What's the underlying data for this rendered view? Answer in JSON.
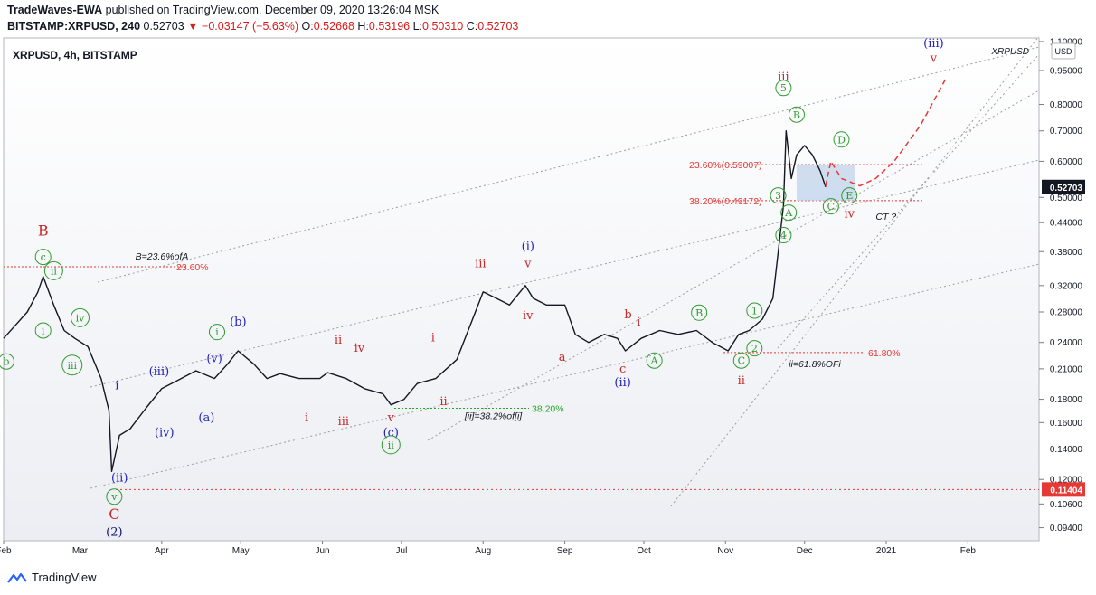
{
  "header": {
    "author": "TradeWaves-EWA",
    "published_text": " published on TradingView.com, December 09, 2020 13:26:04 MSK",
    "symbol": "BITSTAMP:XRPUSD, 240",
    "last": "0.52703",
    "change": "−0.03147 (−5.63%)",
    "o_label": "O:",
    "o": "0.52668",
    "h_label": "H:",
    "h": "0.53196",
    "l_label": "L:",
    "l": "0.50310",
    "c_label": "C:",
    "c": "0.52703"
  },
  "legend_title": "XRPUSD, 4h, BITSTAMP",
  "watermark": "XRPUSD",
  "footer": {
    "brand": "TradingView"
  },
  "colors": {
    "wave_red": "#c62828",
    "wave_green": "#2e9b2e",
    "wave_blue": "#2222bb",
    "navy": "#10106a",
    "fib_red": "#e53935",
    "fib_green": "#27a527",
    "last_price_bg": "#131722",
    "low_bg": "#e53935"
  },
  "chart_data": {
    "type": "line",
    "scale": "log",
    "x_axis": {
      "range": [
        "2020-02-01",
        "2021-02-28"
      ],
      "tick_labels": [
        "Feb",
        "Mar",
        "Apr",
        "May",
        "Jun",
        "Jul",
        "Aug",
        "Sep",
        "Oct",
        "Nov",
        "Dec",
        "2021",
        "Feb"
      ]
    },
    "y_axis": {
      "range": [
        0.088,
        1.12
      ],
      "tick_labels": [
        "1.10000",
        "0.95000",
        "0.80000",
        "0.70000",
        "0.60000",
        "0.50000",
        "0.44000",
        "0.38000",
        "0.32000",
        "0.28000",
        "0.24000",
        "0.21000",
        "0.18000",
        "0.16000",
        "0.14000",
        "0.12000",
        "0.10600",
        "0.09400"
      ],
      "currency": "USD"
    },
    "price_tags": [
      {
        "label": "0.52703",
        "value": 0.52703,
        "kind": "last"
      },
      {
        "label": "0.11404",
        "value": 0.11404,
        "kind": "low"
      }
    ],
    "series": [
      {
        "x": [
          "2020-02-01",
          "2020-02-05",
          "2020-02-10",
          "2020-02-14",
          "2020-02-16",
          "2020-02-20",
          "2020-02-24",
          "2020-02-28",
          "2020-03-04",
          "2020-03-09",
          "2020-03-12",
          "2020-03-13",
          "2020-03-16",
          "2020-03-20",
          "2020-03-26",
          "2020-04-01",
          "2020-04-07",
          "2020-04-14",
          "2020-04-21",
          "2020-04-26",
          "2020-04-30",
          "2020-05-06",
          "2020-05-11",
          "2020-05-16",
          "2020-05-23",
          "2020-05-31",
          "2020-06-03",
          "2020-06-10",
          "2020-06-17",
          "2020-06-24",
          "2020-06-27",
          "2020-07-02",
          "2020-07-07",
          "2020-07-14",
          "2020-07-22",
          "2020-07-28",
          "2020-08-01",
          "2020-08-06",
          "2020-08-11",
          "2020-08-17",
          "2020-08-20",
          "2020-08-25",
          "2020-09-01",
          "2020-09-05",
          "2020-09-10",
          "2020-09-16",
          "2020-09-21",
          "2020-09-24",
          "2020-09-30",
          "2020-10-07",
          "2020-10-14",
          "2020-10-21",
          "2020-10-27",
          "2020-11-02",
          "2020-11-06",
          "2020-11-10",
          "2020-11-15",
          "2020-11-19",
          "2020-11-21",
          "2020-11-23",
          "2020-11-24",
          "2020-11-26",
          "2020-11-28",
          "2020-12-01",
          "2020-12-04",
          "2020-12-07",
          "2020-12-09"
        ],
        "values": [
          0.245,
          0.26,
          0.28,
          0.31,
          0.335,
          0.29,
          0.255,
          0.245,
          0.235,
          0.2,
          0.17,
          0.125,
          0.15,
          0.155,
          0.172,
          0.19,
          0.198,
          0.208,
          0.2,
          0.215,
          0.23,
          0.215,
          0.2,
          0.205,
          0.2,
          0.2,
          0.206,
          0.2,
          0.19,
          0.185,
          0.175,
          0.18,
          0.195,
          0.2,
          0.22,
          0.27,
          0.31,
          0.3,
          0.29,
          0.32,
          0.3,
          0.29,
          0.29,
          0.25,
          0.24,
          0.25,
          0.245,
          0.23,
          0.245,
          0.255,
          0.25,
          0.255,
          0.24,
          0.23,
          0.25,
          0.255,
          0.27,
          0.3,
          0.38,
          0.48,
          0.7,
          0.55,
          0.62,
          0.65,
          0.62,
          0.57,
          0.52703
        ]
      }
    ],
    "forecast_path": {
      "x": [
        "2020-12-09",
        "2020-12-11",
        "2020-12-15",
        "2020-12-22",
        "2020-12-28",
        "2021-01-04",
        "2021-01-14",
        "2021-01-24"
      ],
      "values": [
        0.53,
        0.6,
        0.55,
        0.53,
        0.55,
        0.6,
        0.72,
        0.92
      ],
      "style": "dashed"
    },
    "fib_levels": [
      {
        "label": "23.60%(0.59007)",
        "value": 0.59007
      },
      {
        "label": "38.20%(0.49172)",
        "value": 0.49172
      },
      {
        "label": "23.60%",
        "value": 0.352
      },
      {
        "label": "61.80%",
        "value": 0.228
      },
      {
        "label": "38.20%",
        "value": 0.172
      }
    ],
    "annotations": [
      {
        "text": "B=23.6%ofA",
        "x": "2020-03-22",
        "y": 0.365
      },
      {
        "text": "[ii]=38.2%of[i]",
        "x": "2020-07-25",
        "y": 0.163
      },
      {
        "text": "ii=61.8%OFi",
        "x": "2020-11-25",
        "y": 0.212
      },
      {
        "text": "CT ?",
        "x": "2020-12-28",
        "y": 0.447
      }
    ],
    "wave_labels": [
      {
        "text": "B",
        "x": "2020-02-16",
        "y": 0.42,
        "color": "wave_red",
        "style": "plain"
      },
      {
        "text": "c",
        "x": "2020-02-16",
        "y": 0.37,
        "color": "wave_green",
        "style": "circle"
      },
      {
        "text": "ii",
        "x": "2020-02-20",
        "y": 0.345,
        "color": "wave_green",
        "style": "circle"
      },
      {
        "text": "i",
        "x": "2020-02-16",
        "y": 0.255,
        "color": "wave_green",
        "style": "circle"
      },
      {
        "text": "b",
        "x": "2020-02-02",
        "y": 0.218,
        "color": "wave_green",
        "style": "circle"
      },
      {
        "text": "iv",
        "x": "2020-03-01",
        "y": 0.272,
        "color": "wave_green",
        "style": "circle"
      },
      {
        "text": "iii",
        "x": "2020-02-27",
        "y": 0.214,
        "color": "wave_green",
        "style": "circle"
      },
      {
        "text": "i",
        "x": "2020-03-15",
        "y": 0.193,
        "color": "wave_blue",
        "style": "plain"
      },
      {
        "text": "(ii)",
        "x": "2020-03-16",
        "y": 0.121,
        "color": "wave_blue",
        "style": "plain"
      },
      {
        "text": "v",
        "x": "2020-03-14",
        "y": 0.11,
        "color": "wave_green",
        "style": "circle"
      },
      {
        "text": "C",
        "x": "2020-03-14",
        "y": 0.1,
        "color": "wave_red",
        "style": "plain"
      },
      {
        "text": "(2)",
        "x": "2020-03-14",
        "y": 0.092,
        "color": "navy",
        "style": "plain"
      },
      {
        "text": "(iii)",
        "x": "2020-03-31",
        "y": 0.207,
        "color": "wave_blue",
        "style": "plain"
      },
      {
        "text": "(iv)",
        "x": "2020-04-02",
        "y": 0.152,
        "color": "wave_blue",
        "style": "plain"
      },
      {
        "text": "(v)",
        "x": "2020-04-21",
        "y": 0.221,
        "color": "wave_blue",
        "style": "plain"
      },
      {
        "text": "i",
        "x": "2020-04-22",
        "y": 0.253,
        "color": "wave_green",
        "style": "circle"
      },
      {
        "text": "(a)",
        "x": "2020-04-18",
        "y": 0.164,
        "color": "wave_blue",
        "style": "plain"
      },
      {
        "text": "(b)",
        "x": "2020-04-30",
        "y": 0.266,
        "color": "wave_blue",
        "style": "plain"
      },
      {
        "text": "ii",
        "x": "2020-06-07",
        "y": 0.243,
        "color": "wave_red",
        "style": "plain"
      },
      {
        "text": "iv",
        "x": "2020-06-15",
        "y": 0.233,
        "color": "wave_red",
        "style": "plain"
      },
      {
        "text": "i",
        "x": "2020-05-26",
        "y": 0.164,
        "color": "wave_red",
        "style": "plain"
      },
      {
        "text": "iii",
        "x": "2020-06-09",
        "y": 0.161,
        "color": "wave_red",
        "style": "plain"
      },
      {
        "text": "v",
        "x": "2020-06-27",
        "y": 0.164,
        "color": "wave_red",
        "style": "plain"
      },
      {
        "text": "(c)",
        "x": "2020-06-27",
        "y": 0.152,
        "color": "wave_blue",
        "style": "plain"
      },
      {
        "text": "ii",
        "x": "2020-06-27",
        "y": 0.143,
        "color": "wave_green",
        "style": "circle"
      },
      {
        "text": "i",
        "x": "2020-07-13",
        "y": 0.246,
        "color": "wave_red",
        "style": "plain"
      },
      {
        "text": "ii",
        "x": "2020-07-17",
        "y": 0.178,
        "color": "wave_red",
        "style": "plain"
      },
      {
        "text": "iii",
        "x": "2020-07-31",
        "y": 0.358,
        "color": "wave_red",
        "style": "plain"
      },
      {
        "text": "(i)",
        "x": "2020-08-18",
        "y": 0.39,
        "color": "wave_blue",
        "style": "plain"
      },
      {
        "text": "v",
        "x": "2020-08-18",
        "y": 0.358,
        "color": "wave_red",
        "style": "plain"
      },
      {
        "text": "iv",
        "x": "2020-08-18",
        "y": 0.275,
        "color": "wave_red",
        "style": "plain"
      },
      {
        "text": "a",
        "x": "2020-08-31",
        "y": 0.223,
        "color": "wave_red",
        "style": "plain"
      },
      {
        "text": "b",
        "x": "2020-09-25",
        "y": 0.276,
        "color": "wave_red",
        "style": "plain"
      },
      {
        "text": "i",
        "x": "2020-09-29",
        "y": 0.266,
        "color": "wave_red",
        "style": "plain"
      },
      {
        "text": "c",
        "x": "2020-09-23",
        "y": 0.21,
        "color": "wave_red",
        "style": "plain"
      },
      {
        "text": "(ii)",
        "x": "2020-09-23",
        "y": 0.196,
        "color": "wave_blue",
        "style": "plain"
      },
      {
        "text": "A",
        "x": "2020-10-05",
        "y": 0.219,
        "color": "wave_green",
        "style": "circle"
      },
      {
        "text": "B",
        "x": "2020-10-22",
        "y": 0.279,
        "color": "wave_green",
        "style": "circle"
      },
      {
        "text": "1",
        "x": "2020-11-12",
        "y": 0.282,
        "color": "wave_green",
        "style": "circle"
      },
      {
        "text": "2",
        "x": "2020-11-12",
        "y": 0.233,
        "color": "wave_green",
        "style": "circle"
      },
      {
        "text": "C",
        "x": "2020-11-07",
        "y": 0.219,
        "color": "wave_green",
        "style": "circle"
      },
      {
        "text": "ii",
        "x": "2020-11-07",
        "y": 0.198,
        "color": "wave_red",
        "style": "plain"
      },
      {
        "text": "4",
        "x": "2020-11-23",
        "y": 0.413,
        "color": "wave_green",
        "style": "circle"
      },
      {
        "text": "A",
        "x": "2020-11-25",
        "y": 0.463,
        "color": "wave_green",
        "style": "circle"
      },
      {
        "text": "3",
        "x": "2020-11-21",
        "y": 0.505,
        "color": "wave_green",
        "style": "circle"
      },
      {
        "text": "5",
        "x": "2020-11-23",
        "y": 0.87,
        "color": "wave_green",
        "style": "circle"
      },
      {
        "text": "iii",
        "x": "2020-11-23",
        "y": 0.92,
        "color": "wave_red",
        "style": "plain"
      },
      {
        "text": "B",
        "x": "2020-11-28",
        "y": 0.76,
        "color": "wave_green",
        "style": "circle"
      },
      {
        "text": "D",
        "x": "2020-12-15",
        "y": 0.67,
        "color": "wave_green",
        "style": "circle"
      },
      {
        "text": "C",
        "x": "2020-12-11",
        "y": 0.478,
        "color": "wave_green",
        "style": "circle"
      },
      {
        "text": "E",
        "x": "2020-12-18",
        "y": 0.505,
        "color": "wave_green",
        "style": "circle"
      },
      {
        "text": "iv",
        "x": "2020-12-18",
        "y": 0.46,
        "color": "wave_red",
        "style": "plain"
      },
      {
        "text": "(iii)",
        "x": "2021-01-19",
        "y": 1.09,
        "color": "wave_blue",
        "style": "plain"
      },
      {
        "text": "v",
        "x": "2021-01-19",
        "y": 1.01,
        "color": "wave_red",
        "style": "plain"
      }
    ]
  }
}
